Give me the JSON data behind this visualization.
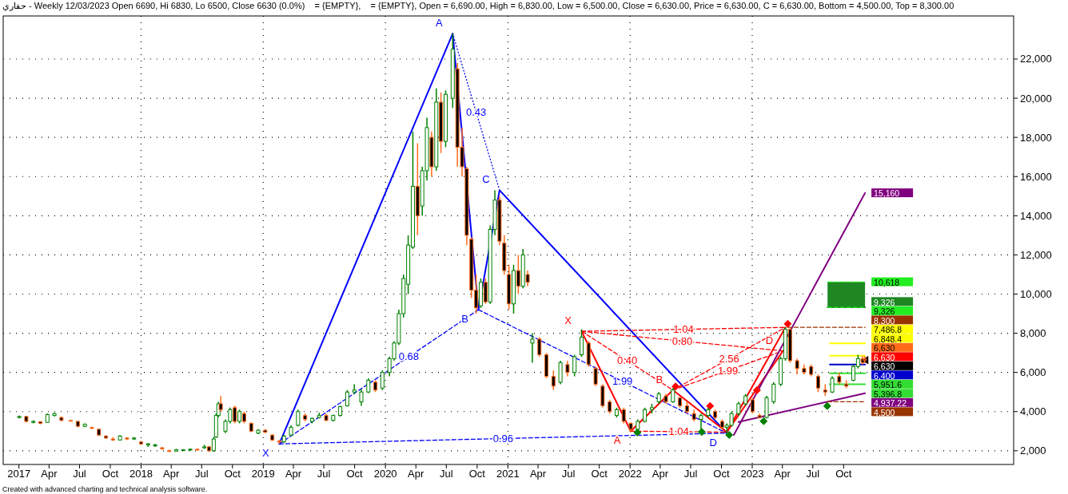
{
  "chart_data": {
    "type": "candlestick",
    "title": "حفاري - Weekly 12/03/2023 Open 6690, Hi 6830, Lo 6500, Close 6630 (0.0%)    = {EMPTY},    = {EMPTY}, Open = 6,690.00, High = 6,830.00, Low = 6,500.00, Close = 6,630.00, Price = 6,630.00, C = 6,630.00, Bottom = 4,500.00, Top = 8,300.00",
    "annotations": [
      "Created with advanced charting and technical analysis software."
    ],
    "xlim": [
      "2016-11-15",
      "2025-02-20"
    ],
    "ylim": [
      1300,
      24200
    ],
    "grid": "y",
    "yticks": [
      {
        "value": 2000,
        "label": "2,000"
      },
      {
        "value": 4000,
        "label": "4,000"
      },
      {
        "value": 6000,
        "label": "6,000"
      },
      {
        "value": 8000,
        "label": "8,000"
      },
      {
        "value": 10000,
        "label": "10,000"
      },
      {
        "value": 12000,
        "label": "12,000"
      },
      {
        "value": 14000,
        "label": "14,000"
      },
      {
        "value": 16000,
        "label": "16,000"
      },
      {
        "value": 18000,
        "label": "18,000"
      },
      {
        "value": 20000,
        "label": "20,000"
      },
      {
        "value": 22000,
        "label": "22,000"
      }
    ],
    "xticks": [
      {
        "value": "2017-01-01",
        "label": "2017"
      },
      {
        "value": "2017-04-01",
        "label": "Apr"
      },
      {
        "value": "2017-07-01",
        "label": "Jul"
      },
      {
        "value": "2017-10-01",
        "label": "Oct"
      },
      {
        "value": "2018-01-01",
        "label": "2018"
      },
      {
        "value": "2018-04-01",
        "label": "Apr"
      },
      {
        "value": "2018-07-01",
        "label": "Jul"
      },
      {
        "value": "2018-10-01",
        "label": "Oct"
      },
      {
        "value": "2019-01-01",
        "label": "2019"
      },
      {
        "value": "2019-04-01",
        "label": "Apr"
      },
      {
        "value": "2019-07-01",
        "label": "Jul"
      },
      {
        "value": "2019-10-01",
        "label": "Oct"
      },
      {
        "value": "2020-01-01",
        "label": "2020"
      },
      {
        "value": "2020-04-01",
        "label": "Apr"
      },
      {
        "value": "2020-07-01",
        "label": "Jul"
      },
      {
        "value": "2020-10-01",
        "label": "Oct"
      },
      {
        "value": "2021-01-01",
        "label": "2021"
      },
      {
        "value": "2021-04-01",
        "label": "Apr"
      },
      {
        "value": "2021-07-01",
        "label": "Jul"
      },
      {
        "value": "2021-10-01",
        "label": "Oct"
      },
      {
        "value": "2022-01-01",
        "label": "2022"
      },
      {
        "value": "2022-04-01",
        "label": "Apr"
      },
      {
        "value": "2022-07-01",
        "label": "Jul"
      },
      {
        "value": "2022-10-01",
        "label": "Oct"
      },
      {
        "value": "2023-01-01",
        "label": "2023"
      },
      {
        "value": "2023-04-01",
        "label": "Apr"
      },
      {
        "value": "2023-07-01",
        "label": "Jul"
      },
      {
        "value": "2023-10-01",
        "label": "Oct"
      }
    ],
    "ref_lines": [
      {
        "axis": "x",
        "value": "2018-01-01",
        "color": "#000000",
        "line_style": "dotted"
      },
      {
        "axis": "x",
        "value": "2019-01-01",
        "color": "#000000",
        "line_style": "dotted"
      },
      {
        "axis": "x",
        "value": "2020-01-01",
        "color": "#000000",
        "line_style": "dotted"
      },
      {
        "axis": "x",
        "value": "2021-01-01",
        "color": "#000000",
        "line_style": "dotted"
      },
      {
        "axis": "x",
        "value": "2022-01-01",
        "color": "#000000",
        "line_style": "dotted"
      },
      {
        "axis": "x",
        "value": "2023-01-01",
        "color": "#000000",
        "line_style": "dotted"
      }
    ],
    "x": [
      "2017-01-02",
      "2017-01-23",
      "2017-02-13",
      "2017-03-06",
      "2017-03-27",
      "2017-04-17",
      "2017-05-08",
      "2017-06-05",
      "2017-06-26",
      "2017-07-17",
      "2017-08-07",
      "2017-08-28",
      "2017-09-18",
      "2017-10-09",
      "2017-10-30",
      "2017-11-20",
      "2017-12-11",
      "2018-01-01",
      "2018-01-22",
      "2018-02-12",
      "2018-03-05",
      "2018-03-26",
      "2018-04-16",
      "2018-05-07",
      "2018-05-28",
      "2018-06-18",
      "2018-07-09",
      "2018-07-23",
      "2018-08-06",
      "2018-08-13",
      "2018-08-20",
      "2018-08-27",
      "2018-09-10",
      "2018-09-24",
      "2018-10-08",
      "2018-10-22",
      "2018-11-05",
      "2018-11-26",
      "2018-12-17",
      "2019-01-07",
      "2019-01-28",
      "2019-02-18",
      "2019-03-04",
      "2019-03-25",
      "2019-04-15",
      "2019-05-06",
      "2019-05-27",
      "2019-06-17",
      "2019-07-08",
      "2019-07-29",
      "2019-08-19",
      "2019-09-09",
      "2019-09-30",
      "2019-10-21",
      "2019-11-11",
      "2019-12-02",
      "2019-12-23",
      "2020-01-13",
      "2020-01-27",
      "2020-02-10",
      "2020-02-24",
      "2020-03-09",
      "2020-03-23",
      "2020-04-06",
      "2020-04-20",
      "2020-05-04",
      "2020-05-18",
      "2020-06-01",
      "2020-06-15",
      "2020-06-29",
      "2020-07-20",
      "2020-08-03",
      "2020-08-17",
      "2020-08-31",
      "2020-09-14",
      "2020-09-28",
      "2020-10-12",
      "2020-10-26",
      "2020-11-09",
      "2020-11-23",
      "2020-12-07",
      "2020-12-21",
      "2021-01-04",
      "2021-01-18",
      "2021-02-01",
      "2021-02-15",
      "2021-03-01",
      "2021-03-15",
      "2021-04-05",
      "2021-04-26",
      "2021-05-17",
      "2021-06-07",
      "2021-06-28",
      "2021-07-19",
      "2021-08-09",
      "2021-08-30",
      "2021-09-20",
      "2021-10-11",
      "2021-11-01",
      "2021-11-22",
      "2021-12-13",
      "2022-01-03",
      "2022-01-24",
      "2022-02-14",
      "2022-03-07",
      "2022-03-28",
      "2022-04-18",
      "2022-05-09",
      "2022-05-30",
      "2022-06-20",
      "2022-07-11",
      "2022-08-01",
      "2022-08-22",
      "2022-09-12",
      "2022-10-03",
      "2022-10-17",
      "2022-10-31",
      "2022-11-21",
      "2022-12-12",
      "2023-01-02",
      "2023-01-23",
      "2023-02-13",
      "2023-03-06",
      "2023-03-27",
      "2023-04-10",
      "2023-04-24",
      "2023-05-15",
      "2023-06-05",
      "2023-06-26",
      "2023-07-17",
      "2023-08-07",
      "2023-08-28",
      "2023-09-18",
      "2023-10-09",
      "2023-10-30",
      "2023-11-13",
      "2023-11-27",
      "2023-12-03"
    ],
    "ohlc": [
      [
        3700,
        3800,
        3650,
        3750
      ],
      [
        3750,
        3780,
        3450,
        3500
      ],
      [
        3450,
        3550,
        3400,
        3500
      ],
      [
        3480,
        3520,
        3350,
        3400
      ],
      [
        3450,
        3900,
        3450,
        3850
      ],
      [
        3800,
        3950,
        3750,
        3900
      ],
      [
        3700,
        3750,
        3500,
        3550
      ],
      [
        3550,
        3560,
        3500,
        3520
      ],
      [
        3500,
        3520,
        3200,
        3250
      ],
      [
        3250,
        3400,
        3200,
        3350
      ],
      [
        3200,
        3220,
        3100,
        3150
      ],
      [
        3100,
        3110,
        2750,
        2800
      ],
      [
        2750,
        2800,
        2600,
        2650
      ],
      [
        2600,
        2700,
        2500,
        2550
      ],
      [
        2550,
        2800,
        2550,
        2750
      ],
      [
        2650,
        2700,
        2550,
        2600
      ],
      [
        2600,
        2700,
        2550,
        2650
      ],
      [
        2450,
        2500,
        2300,
        2350
      ],
      [
        2300,
        2400,
        2200,
        2350
      ],
      [
        2250,
        2350,
        2200,
        2300
      ],
      [
        2150,
        2200,
        2050,
        2100
      ],
      [
        2000,
        2050,
        1950,
        1980
      ],
      [
        1980,
        2100,
        1950,
        2050
      ],
      [
        2020,
        2080,
        2000,
        2050
      ],
      [
        2050,
        2100,
        2000,
        2080
      ],
      [
        2080,
        2100,
        2000,
        2050
      ],
      [
        2150,
        2300,
        2100,
        2200
      ],
      [
        2200,
        2250,
        1950,
        2000
      ],
      [
        2000,
        2700,
        1950,
        2600
      ],
      [
        2700,
        3900,
        2650,
        3800
      ],
      [
        3800,
        4500,
        3700,
        4400
      ],
      [
        4400,
        4800,
        4000,
        4100
      ],
      [
        3000,
        3600,
        2900,
        3500
      ],
      [
        3500,
        4200,
        3400,
        4100
      ],
      [
        4200,
        4300,
        3400,
        3500
      ],
      [
        3500,
        4100,
        3400,
        4000
      ],
      [
        3900,
        4000,
        3400,
        3500
      ],
      [
        3400,
        3450,
        2950,
        3000
      ],
      [
        2900,
        3100,
        2850,
        3050
      ],
      [
        3050,
        3100,
        2900,
        2950
      ],
      [
        2800,
        2850,
        2500,
        2550
      ],
      [
        2500,
        2550,
        2350,
        2450
      ],
      [
        2450,
        2800,
        2400,
        2750
      ],
      [
        2800,
        3300,
        2750,
        3200
      ],
      [
        3300,
        4100,
        3250,
        4000
      ],
      [
        3800,
        3900,
        3500,
        3600
      ],
      [
        3500,
        3700,
        3400,
        3650
      ],
      [
        3700,
        3950,
        3650,
        3800
      ],
      [
        3800,
        3900,
        3500,
        3550
      ],
      [
        3550,
        3850,
        3500,
        3800
      ],
      [
        3800,
        4300,
        3750,
        4250
      ],
      [
        4300,
        5100,
        4250,
        5000
      ],
      [
        5000,
        5400,
        4900,
        5100
      ],
      [
        4500,
        5150,
        4300,
        5000
      ],
      [
        5000,
        5700,
        4950,
        5600
      ],
      [
        5500,
        5600,
        5000,
        5100
      ],
      [
        5200,
        6100,
        5100,
        6000
      ],
      [
        6000,
        6800,
        5800,
        6700
      ],
      [
        6700,
        7600,
        6600,
        7500
      ],
      [
        7500,
        9200,
        7400,
        9000
      ],
      [
        9000,
        11000,
        8800,
        10800
      ],
      [
        10500,
        13000,
        10000,
        12500
      ],
      [
        12400,
        18300,
        12300,
        15500
      ],
      [
        15500,
        17700,
        13000,
        14000
      ],
      [
        14500,
        16500,
        14000,
        16300
      ],
      [
        16300,
        19000,
        15800,
        18500
      ],
      [
        18000,
        18300,
        16000,
        16500
      ],
      [
        16500,
        20500,
        16300,
        19800
      ],
      [
        19800,
        20300,
        17200,
        17800
      ],
      [
        17800,
        20400,
        17500,
        20200
      ],
      [
        20000,
        23300,
        19500,
        22500
      ],
      [
        21500,
        21800,
        16500,
        17500
      ],
      [
        17500,
        18500,
        16000,
        16500
      ],
      [
        16400,
        16500,
        12500,
        13000
      ],
      [
        12800,
        12900,
        9800,
        10200
      ],
      [
        10200,
        11000,
        9000,
        9300
      ],
      [
        9400,
        10800,
        9300,
        10600
      ],
      [
        10600,
        10800,
        9500,
        9600
      ],
      [
        9600,
        13500,
        9500,
        13300
      ],
      [
        13300,
        15300,
        13000,
        14800
      ],
      [
        14800,
        15000,
        12500,
        12700
      ],
      [
        12600,
        13000,
        11000,
        11200
      ],
      [
        11000,
        11500,
        9200,
        9500
      ],
      [
        9500,
        11500,
        9000,
        11200
      ],
      [
        11200,
        12000,
        10000,
        10400
      ],
      [
        10400,
        12300,
        10300,
        12000
      ],
      [
        11000,
        11200,
        10400,
        10600
      ],
      [
        7500,
        8000,
        6500,
        7700
      ],
      [
        7700,
        7800,
        6800,
        6900
      ],
      [
        6900,
        7000,
        5700,
        5800
      ],
      [
        5800,
        6100,
        5100,
        5300
      ],
      [
        5500,
        6600,
        5400,
        6500
      ],
      [
        6400,
        6600,
        5800,
        6000
      ],
      [
        6000,
        6900,
        5800,
        6800
      ],
      [
        6900,
        8200,
        6800,
        7800
      ],
      [
        7500,
        7600,
        6300,
        6400
      ],
      [
        6200,
        6300,
        5300,
        5400
      ],
      [
        5300,
        5400,
        4200,
        4300
      ],
      [
        4500,
        4600,
        3900,
        4000
      ],
      [
        3800,
        4200,
        3700,
        4100
      ],
      [
        4100,
        4200,
        3400,
        3500
      ],
      [
        3400,
        3450,
        2950,
        3100
      ],
      [
        3100,
        3600,
        3050,
        3500
      ],
      [
        3500,
        4200,
        3450,
        4100
      ],
      [
        4100,
        4400,
        3900,
        4200
      ],
      [
        4500,
        5000,
        4400,
        4900
      ],
      [
        4800,
        4900,
        4400,
        4500
      ],
      [
        4500,
        5200,
        4450,
        5100
      ],
      [
        4700,
        4750,
        4200,
        4300
      ],
      [
        4300,
        4500,
        3900,
        4000
      ],
      [
        3900,
        4100,
        3500,
        3600
      ],
      [
        3600,
        3900,
        3100,
        3800
      ],
      [
        3800,
        4200,
        3700,
        4100
      ],
      [
        4000,
        4100,
        3600,
        3700
      ],
      [
        3500,
        3600,
        3100,
        3200
      ],
      [
        3200,
        3400,
        2900,
        3300
      ],
      [
        3300,
        4000,
        3250,
        3900
      ],
      [
        3900,
        4500,
        3800,
        4400
      ],
      [
        4400,
        4900,
        4300,
        4800
      ],
      [
        4600,
        4700,
        3900,
        4000
      ],
      [
        3800,
        3900,
        3650,
        3700
      ],
      [
        3700,
        4800,
        3650,
        4700
      ],
      [
        4500,
        5500,
        4400,
        5400
      ],
      [
        5400,
        6800,
        5300,
        6700
      ],
      [
        6700,
        8300,
        6600,
        8200
      ],
      [
        8200,
        8250,
        6500,
        6600
      ],
      [
        6600,
        6700,
        5900,
        6200
      ],
      [
        6200,
        6400,
        5900,
        6000
      ],
      [
        6300,
        6400,
        5800,
        5900
      ],
      [
        5800,
        5900,
        5000,
        5200
      ],
      [
        5100,
        5400,
        4800,
        5000
      ],
      [
        5000,
        5800,
        4950,
        5700
      ],
      [
        5800,
        6000,
        5400,
        5500
      ],
      [
        5400,
        5600,
        5200,
        5300
      ],
      [
        5600,
        6400,
        5550,
        6300
      ],
      [
        6300,
        6900,
        6200,
        6700
      ],
      [
        6700,
        6850,
        6400,
        6500
      ],
      [
        6690,
        6830,
        6500,
        6630
      ]
    ],
    "series": [
      {
        "type": "line",
        "color": "#0000ff",
        "line_style": "solid",
        "x": [
          "2019-02-18",
          "2020-07-20",
          "2020-10-05",
          "2020-12-07",
          "2022-10-17"
        ],
        "values": [
          2350,
          23300,
          9200,
          15300,
          2900
        ],
        "value_labels": [
          "X",
          "A",
          "B",
          "C",
          "D"
        ]
      },
      {
        "type": "line",
        "color": "#0000ff",
        "line_style": "dashed",
        "name": "0.68",
        "x": [
          "2019-02-18",
          "2020-10-05"
        ],
        "values": [
          2350,
          9200
        ]
      },
      {
        "type": "line",
        "color": "#0000ff",
        "line_style": "dotted",
        "name": "0.43",
        "x": [
          "2020-07-20",
          "2020-12-07"
        ],
        "values": [
          23300,
          15300
        ]
      },
      {
        "type": "line",
        "color": "#0000ff",
        "line_style": "dashed",
        "name": "1.99",
        "x": [
          "2020-10-05",
          "2022-10-17"
        ],
        "values": [
          9200,
          2900
        ]
      },
      {
        "type": "line",
        "color": "#0000ff",
        "line_style": "dashed",
        "name": "0.96",
        "x": [
          "2019-02-18",
          "2022-10-17"
        ],
        "values": [
          2350,
          2900
        ]
      },
      {
        "type": "line",
        "color": "#ff0000",
        "line_style": "solid",
        "x": [
          "2021-08-09",
          "2022-01-03",
          "2022-05-09",
          "2022-10-17",
          "2023-04-03"
        ],
        "values": [
          8100,
          3000,
          5100,
          2950,
          7100
        ],
        "value_labels": [
          "X",
          "A",
          "B",
          null,
          "D"
        ]
      },
      {
        "type": "line",
        "color": "#ff0000",
        "line_style": "solid",
        "x": [
          "2022-10-17",
          "2023-04-10"
        ],
        "values": [
          2950,
          8300
        ]
      },
      {
        "type": "line",
        "color": "#ff0000",
        "line_style": "dashed",
        "name": "1.04",
        "x": [
          "2021-08-09",
          "2023-04-10"
        ],
        "values": [
          8100,
          8300
        ]
      },
      {
        "type": "line",
        "color": "#ff0000",
        "line_style": "dashed",
        "name": "0.80",
        "x": [
          "2021-08-09",
          "2023-04-03"
        ],
        "values": [
          8100,
          7100
        ]
      },
      {
        "type": "line",
        "color": "#ff0000",
        "line_style": "dashed",
        "name": "0.40",
        "x": [
          "2021-08-09",
          "2022-05-09"
        ],
        "values": [
          8100,
          5100
        ]
      },
      {
        "type": "line",
        "color": "#ff0000",
        "line_style": "dashed",
        "name": "2.56",
        "x": [
          "2022-05-09",
          "2023-04-10"
        ],
        "values": [
          5100,
          8300
        ]
      },
      {
        "type": "line",
        "color": "#ff0000",
        "line_style": "dashed",
        "name": "1.99",
        "x": [
          "2022-05-09",
          "2023-04-03"
        ],
        "values": [
          5100,
          7100
        ]
      },
      {
        "type": "line",
        "color": "#ff0000",
        "line_style": "dashed",
        "name": "1.04",
        "x": [
          "2022-01-03",
          "2022-10-17"
        ],
        "values": [
          3000,
          2950
        ]
      },
      {
        "type": "line",
        "color": "#800080",
        "line_style": "solid",
        "x": [
          "2022-11-07",
          "2023-12-04"
        ],
        "values": [
          2810,
          15160
        ],
        "value_labels": [
          null,
          "15,160"
        ]
      },
      {
        "type": "line",
        "color": "#800080",
        "line_style": "solid",
        "x": [
          "2022-11-21",
          "2023-12-04"
        ],
        "values": [
          3470,
          4937.22
        ],
        "value_labels": [
          null,
          "4,937.22"
        ]
      },
      {
        "type": "line",
        "color": "#1e8722",
        "line_style": "solid",
        "x": [
          "2023-08-14",
          "2023-12-04"
        ],
        "values": [
          9326,
          9326
        ],
        "lower": [
          9326,
          9326
        ],
        "upper": [
          10618,
          10618
        ],
        "value_labels": [
          null,
          "9,326"
        ]
      },
      {
        "type": "line",
        "color": "#22ee22",
        "line_style": "dashed",
        "x": [
          "2023-08-14",
          "2023-12-04"
        ],
        "values": [
          10618,
          10618
        ],
        "value_labels": [
          null,
          "10,618"
        ]
      },
      {
        "type": "line",
        "color": "#22ee22",
        "line_style": "dashed",
        "x": [
          "2023-08-14",
          "2023-12-04"
        ],
        "values": [
          9326,
          9326
        ],
        "value_labels": [
          null,
          "9,326"
        ]
      },
      {
        "type": "line",
        "color": "#993300",
        "line_style": "dashed",
        "x": [
          "2023-04-17",
          "2023-12-04"
        ],
        "values": [
          8300,
          8300
        ],
        "value_labels": [
          null,
          "8,300"
        ]
      },
      {
        "type": "line",
        "color": "#ffff00",
        "line_style": "solid",
        "x": [
          "2023-08-21",
          "2023-12-04"
        ],
        "values": [
          7486.8,
          7486.8
        ],
        "value_labels": [
          null,
          "7,486.8"
        ]
      },
      {
        "type": "line",
        "color": "#ffff00",
        "line_style": "solid",
        "x": [
          "2023-08-21",
          "2023-12-04"
        ],
        "values": [
          6848.4,
          6848.4
        ],
        "value_labels": [
          null,
          "6,848.4"
        ]
      },
      {
        "type": "line",
        "color": "#0000cc",
        "line_style": "solid",
        "x": [
          "2023-08-21",
          "2023-12-04"
        ],
        "values": [
          6400,
          6400
        ],
        "value_labels": [
          null,
          "6,400"
        ]
      },
      {
        "type": "line",
        "color": "#33dd33",
        "line_style": "solid",
        "x": [
          "2023-08-21",
          "2023-12-04"
        ],
        "values": [
          5951.6,
          5951.6
        ],
        "value_labels": [
          null,
          "5,951.6"
        ]
      },
      {
        "type": "line",
        "color": "#33dd33",
        "line_style": "solid",
        "x": [
          "2023-08-21",
          "2023-12-04"
        ],
        "values": [
          5396.8,
          5396.8
        ],
        "value_labels": [
          null,
          "5,396.8"
        ]
      },
      {
        "type": "line",
        "color": "#993300",
        "line_style": "dashed",
        "x": [
          "2023-08-14",
          "2023-12-04"
        ],
        "values": [
          4500,
          4500
        ],
        "value_labels": [
          null,
          "4,500"
        ]
      },
      {
        "type": "scatter",
        "marker": "triangle",
        "colors": [
          "#ff6a1a",
          "#ff0000",
          "#000000"
        ],
        "x": [
          "2023-12-04",
          "2023-12-04",
          "2023-12-04"
        ],
        "values": [
          6630,
          6630,
          6630
        ],
        "value_labels": [
          "6,630",
          "6,630",
          "6,630"
        ]
      },
      {
        "type": "scatter",
        "marker": "diamond",
        "color": "#ff0000",
        "x": [
          "2022-05-17",
          "2022-08-28",
          "2023-01-15",
          "2023-04-17"
        ],
        "values": [
          5280,
          4280,
          5090,
          8480
        ]
      },
      {
        "type": "scatter",
        "marker": "diamond",
        "color": "#008000",
        "x": [
          "2022-01-23",
          "2022-08-03",
          "2022-10-24",
          "2023-02-04",
          "2023-08-13"
        ],
        "values": [
          2930,
          2965,
          2810,
          3510,
          4280
        ]
      }
    ]
  }
}
